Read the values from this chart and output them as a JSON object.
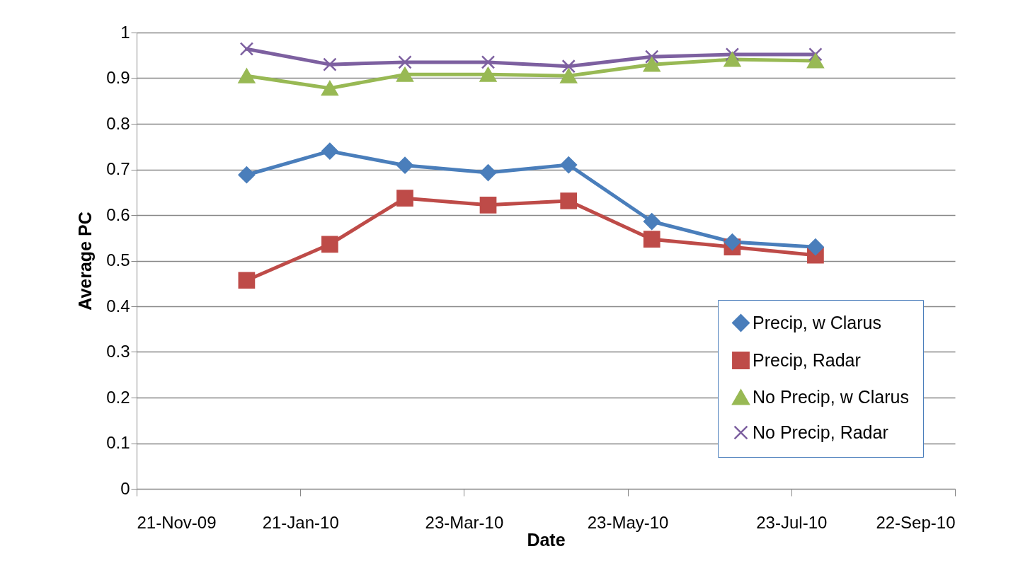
{
  "chart_data": {
    "type": "line",
    "xlabel": "Date",
    "ylabel": "Average PC",
    "x": [
      "2010-01-01",
      "2010-02-01",
      "2010-03-01",
      "2010-04-01",
      "2010-05-01",
      "2010-06-01",
      "2010-07-01",
      "2010-08-01"
    ],
    "series": [
      {
        "name": "Precip, w Clarus",
        "color": "#4a7ebb",
        "marker": "diamond",
        "values": [
          0.688,
          0.74,
          0.709,
          0.693,
          0.71,
          0.586,
          0.541,
          0.53
        ]
      },
      {
        "name": "Precip, Radar",
        "color": "#be4b48",
        "marker": "square",
        "values": [
          0.457,
          0.536,
          0.637,
          0.622,
          0.631,
          0.547,
          0.53,
          0.512
        ]
      },
      {
        "name": "No Precip, w Clarus",
        "color": "#98b954",
        "marker": "triangle",
        "values": [
          0.905,
          0.878,
          0.908,
          0.908,
          0.905,
          0.93,
          0.941,
          0.938
        ]
      },
      {
        "name": "No Precip, Radar",
        "color": "#7d60a0",
        "marker": "cross",
        "values": [
          0.964,
          0.93,
          0.935,
          0.935,
          0.926,
          0.947,
          0.952,
          0.952
        ]
      }
    ],
    "xlim": [
      "2009-11-21",
      "2010-09-22"
    ],
    "xticks": [
      {
        "value": "2009-11-21",
        "label": "21-Nov-09"
      },
      {
        "value": "2010-01-21",
        "label": "21-Jan-10"
      },
      {
        "value": "2010-03-23",
        "label": "23-Mar-10"
      },
      {
        "value": "2010-05-23",
        "label": "23-May-10"
      },
      {
        "value": "2010-07-23",
        "label": "23-Jul-10"
      },
      {
        "value": "2010-09-22",
        "label": "22-Sep-10"
      }
    ],
    "ylim": [
      0,
      1
    ],
    "yticks": [
      0,
      0.1,
      0.2,
      0.3,
      0.4,
      0.5,
      0.6,
      0.7,
      0.8,
      0.9,
      1
    ],
    "grid": "y",
    "legend": "bottom right",
    "line_style": "solid"
  }
}
